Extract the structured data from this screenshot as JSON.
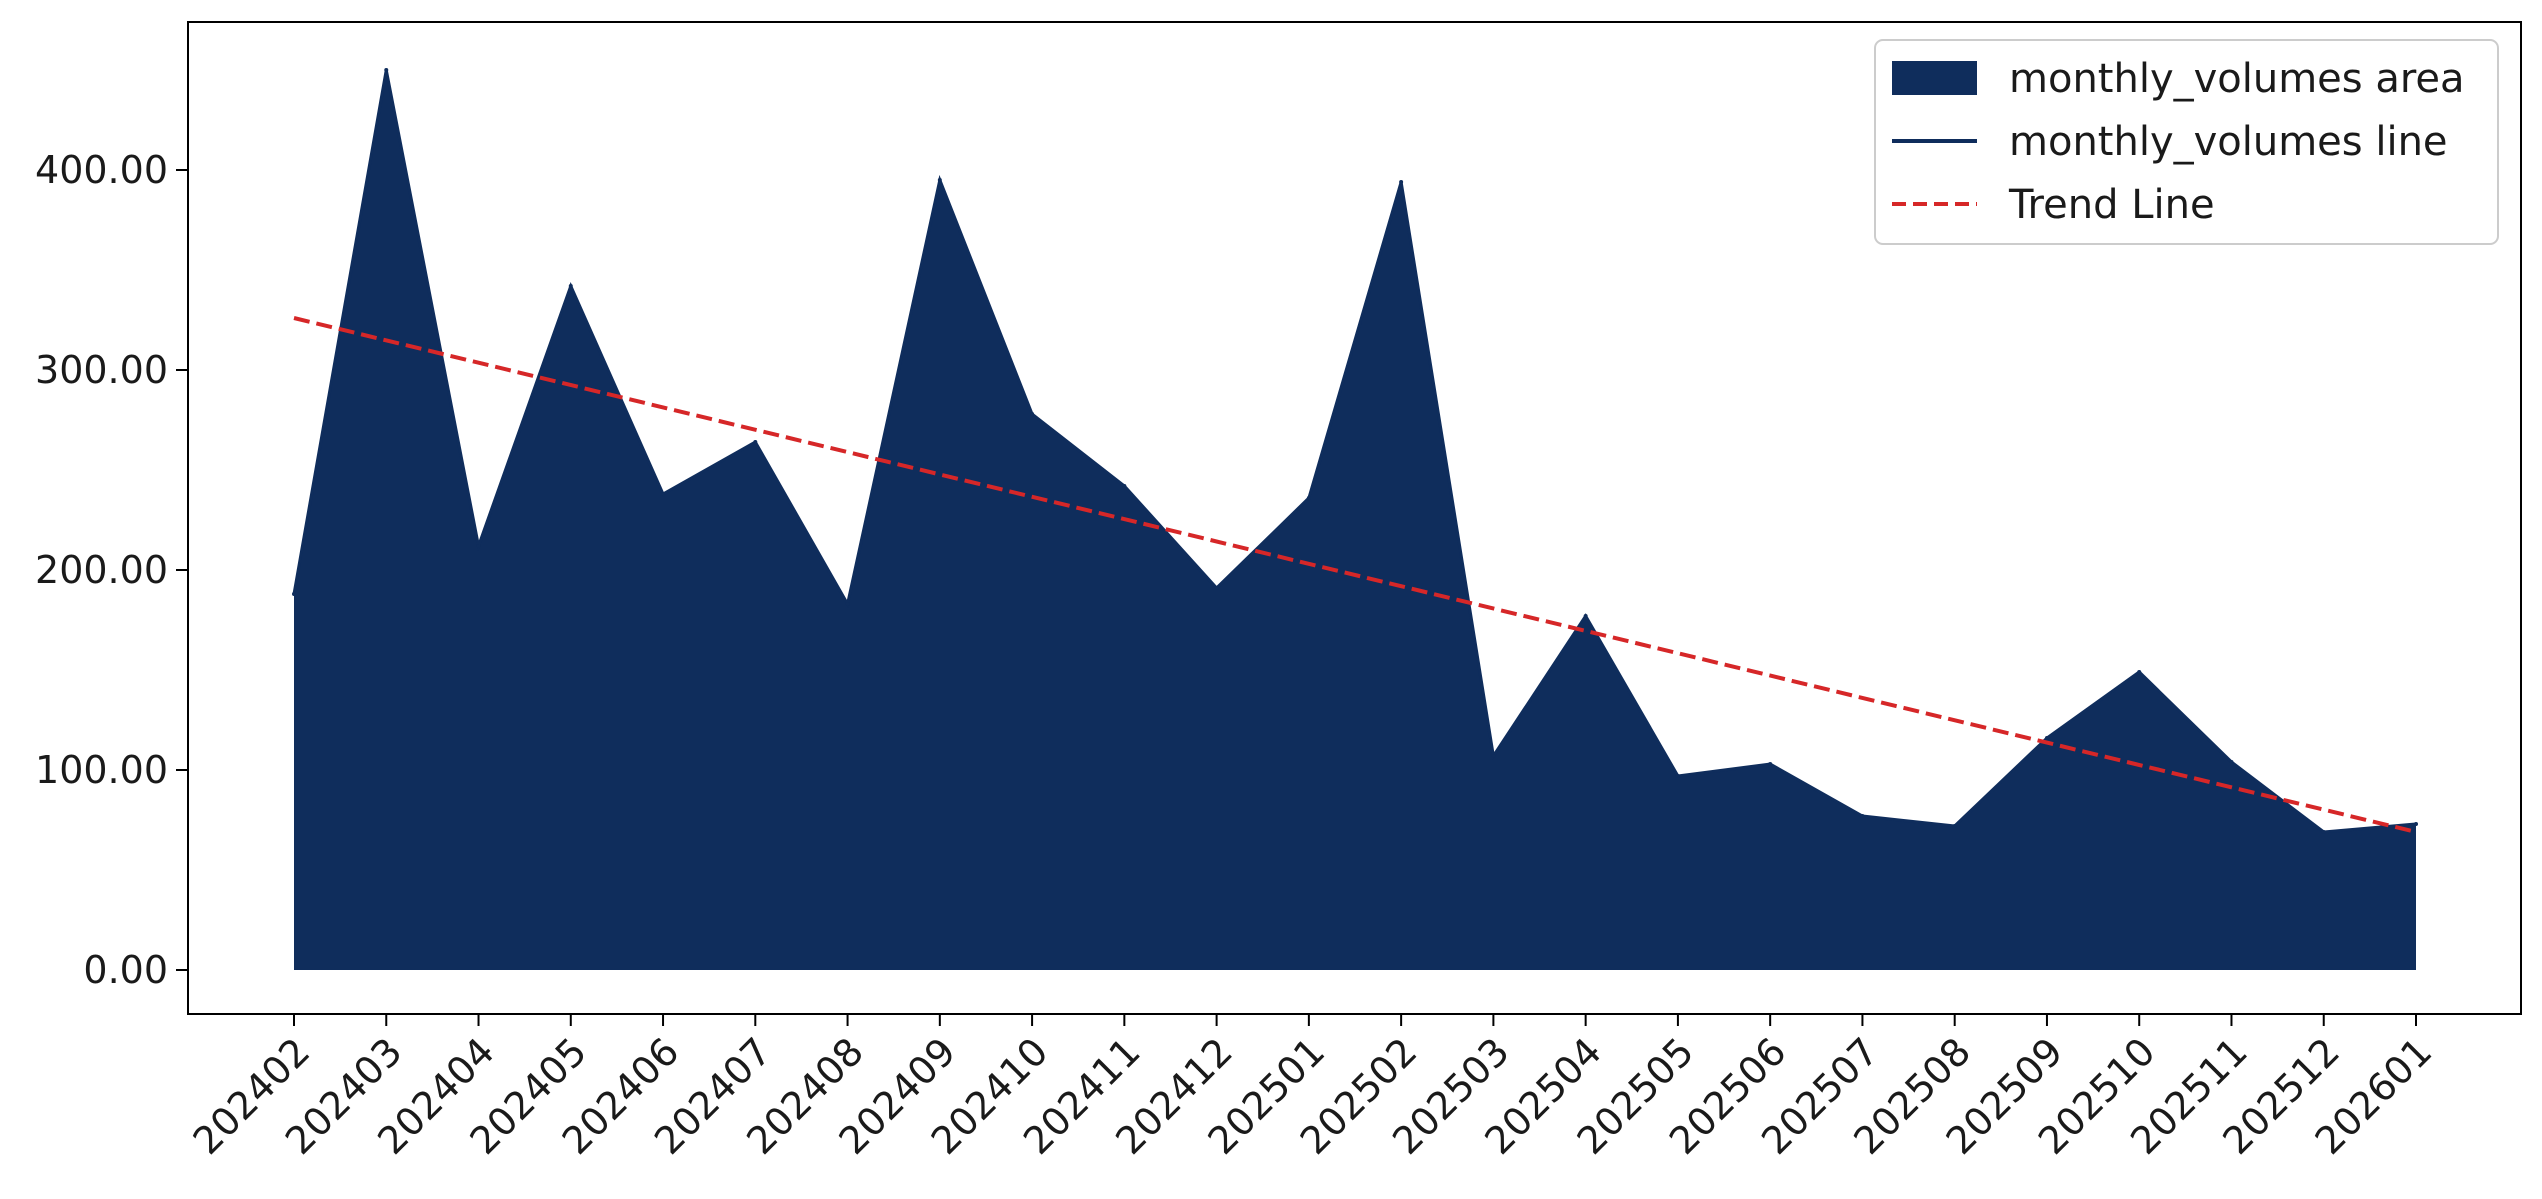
{
  "chart_data": {
    "type": "area",
    "x": [
      "202402",
      "202403",
      "202404",
      "202405",
      "202406",
      "202407",
      "202408",
      "202409",
      "202410",
      "202411",
      "202412",
      "202501",
      "202502",
      "202503",
      "202504",
      "202505",
      "202506",
      "202507",
      "202508",
      "202509",
      "202510",
      "202511",
      "202512",
      "202601"
    ],
    "series": [
      {
        "name": "monthly_volumes area",
        "kind": "area",
        "color": "#0f2d5c",
        "values": [
          188,
          450,
          212,
          342,
          238,
          264,
          183,
          395,
          278,
          242,
          191,
          236,
          394,
          107,
          177,
          97,
          103,
          77,
          72,
          116,
          149,
          104,
          69,
          73
        ]
      },
      {
        "name": "monthly_volumes line",
        "kind": "line",
        "color": "#0f2d5c",
        "values": [
          188,
          450,
          212,
          342,
          238,
          264,
          183,
          395,
          278,
          242,
          191,
          236,
          394,
          107,
          177,
          97,
          103,
          77,
          72,
          116,
          149,
          104,
          69,
          73
        ]
      },
      {
        "name": "Trend Line",
        "kind": "trend",
        "style": "dashed",
        "color": "#d62728",
        "start": 326,
        "end": 69
      }
    ],
    "ylim": [
      -22,
      474
    ],
    "yticks": [
      {
        "value": 0,
        "label": "0.00"
      },
      {
        "value": 100,
        "label": "100.00"
      },
      {
        "value": 200,
        "label": "200.00"
      },
      {
        "value": 300,
        "label": "300.00"
      },
      {
        "value": 400,
        "label": "400.00"
      }
    ],
    "grid": false,
    "legend_position": "top-right",
    "title": "",
    "xlabel": "",
    "ylabel": ""
  }
}
